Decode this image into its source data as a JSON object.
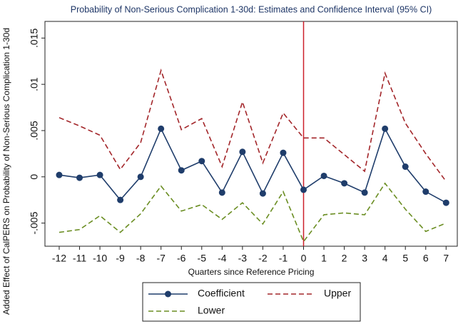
{
  "chart_data": {
    "type": "line",
    "title": "Probability of Non-Serious Complication 1-30d: Estimates and Confidence Interval (95% CI)",
    "x_label": "Quarters since Reference Pricing",
    "y_label": "Added Effect of CalPERS on Probability of Non-Serious Complication 1-30d",
    "x": [
      -12,
      -11,
      -10,
      -9,
      -8,
      -7,
      -6,
      -5,
      -4,
      -3,
      -2,
      -1,
      0,
      1,
      2,
      3,
      4,
      5,
      6,
      7
    ],
    "series": [
      {
        "name": "Coefficient",
        "color": "#1f3d6b",
        "style": "solid",
        "markers": true,
        "values": [
          0.0002,
          -0.0001,
          0.0002,
          -0.0025,
          0,
          0.0052,
          0.0007,
          0.0017,
          -0.0017,
          0.0027,
          -0.0018,
          0.0026,
          -0.0014,
          0.0001,
          -0.0007,
          -0.0017,
          0.0052,
          0.0011,
          -0.0016,
          -0.0028
        ]
      },
      {
        "name": "Upper",
        "color": "#a3262a",
        "style": "dashed",
        "markers": false,
        "values": [
          0.0064,
          0.0055,
          0.0045,
          0.0008,
          0.0037,
          0.0115,
          0.0051,
          0.0063,
          0.0011,
          0.0081,
          0.0015,
          0.0069,
          0.0042,
          0.0042,
          0.0024,
          0.0006,
          0.0112,
          0.0058,
          0.0025,
          -0.0005
        ]
      },
      {
        "name": "Lower",
        "color": "#6b8e23",
        "style": "dashed",
        "markers": false,
        "values": [
          -0.006,
          -0.0057,
          -0.0042,
          -0.006,
          -0.004,
          -0.001,
          -0.0037,
          -0.003,
          -0.0046,
          -0.0028,
          -0.0051,
          -0.0016,
          -0.007,
          -0.0041,
          -0.0039,
          -0.0041,
          -0.0007,
          -0.0035,
          -0.0059,
          -0.005
        ]
      }
    ],
    "xlim": [
      -12.7,
      7.55
    ],
    "xticks": [
      -12,
      -11,
      -10,
      -9,
      -8,
      -7,
      -6,
      -5,
      -4,
      -3,
      -2,
      -1,
      0,
      1,
      2,
      3,
      4,
      5,
      6,
      7
    ],
    "ylim": [
      -0.0075,
      0.0168
    ],
    "yticks": [
      {
        "value": 0.015,
        "label": ".015"
      },
      {
        "value": 0.01,
        "label": ".01"
      },
      {
        "value": 0.005,
        "label": ".005"
      },
      0,
      {
        "value": -0.005,
        "label": "-.005"
      }
    ],
    "reference_line": {
      "x": 0,
      "color": "#cc1f2a"
    },
    "legend": "bottom"
  }
}
